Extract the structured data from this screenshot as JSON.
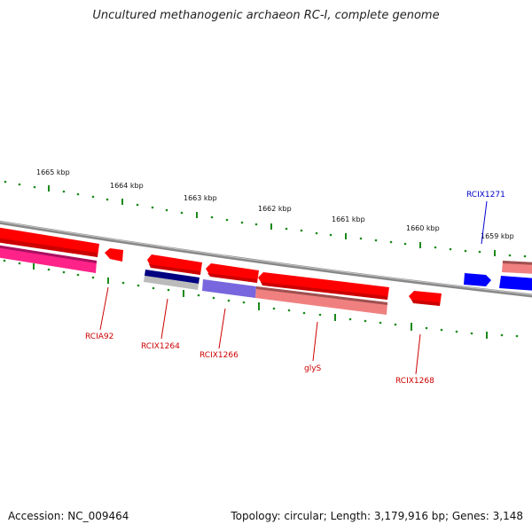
{
  "title": "Uncultured methanogenic archaeon RC-I, complete genome",
  "footer": {
    "accession": "Accession: NC_009464",
    "summary": "Topology: circular; Length: 3,179,916 bp; Genes: 3,148"
  },
  "scale_labels": [
    "1665 kbp",
    "1664 kbp",
    "1663 kbp",
    "1662 kbp",
    "1661 kbp",
    "1660 kbp",
    "1659 kbp"
  ],
  "gene_labels": [
    {
      "name": "RCIA92",
      "color": "#cc0000"
    },
    {
      "name": "RCIX1264",
      "color": "#cc0000"
    },
    {
      "name": "RCIX1266",
      "color": "#cc0000"
    },
    {
      "name": "glyS",
      "color": "#cc0000"
    },
    {
      "name": "RCIX1268",
      "color": "#cc0000"
    },
    {
      "name": "RCIX1271",
      "color": "#0000cc"
    }
  ],
  "colors": {
    "backbone": "#888888",
    "ticks": "#1a8a1a",
    "gene_red": "#ff0000",
    "gene_blue": "#0000ff",
    "gene_pink": "#ff2288",
    "gene_navy": "#000080",
    "gene_purple": "#7766dd",
    "gene_salmon": "#f08080",
    "gene_gray": "#bbbbbb"
  }
}
